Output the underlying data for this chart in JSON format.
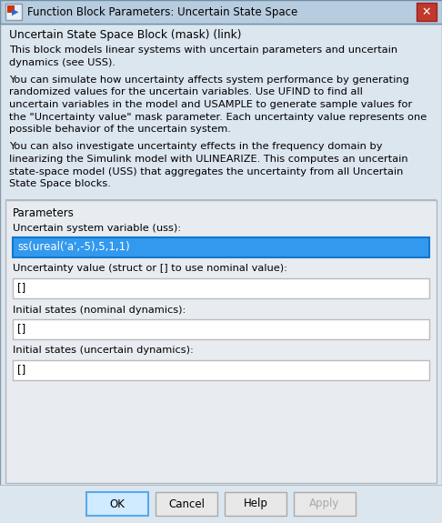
{
  "title": "Function Block Parameters: Uncertain State Space",
  "bg_gradient_top": "#c8d8e8",
  "bg_gradient_bot": "#a0b8d0",
  "dialog_bg": "#dce6ef",
  "desc_bg": "#dce6ef",
  "params_bg": "#e8ecf0",
  "params_border": "#b0b8c0",
  "header_text": "Uncertain State Space Block (mask) (link)",
  "desc_paragraphs": [
    "This block models linear systems with uncertain parameters and uncertain\ndynamics (see USS).",
    "You can simulate how uncertainty affects system performance by generating\nrandomized values for the uncertain variables. Use UFIND to find all\nuncertain variables in the model and USAMPLE to generate sample values for\nthe \"Uncertainty value\" mask parameter. Each uncertainty value represents one\npossible behavior of the uncertain system.",
    "You can also investigate uncertainty effects in the frequency domain by\nlinearizing the Simulink model with ULINEARIZE. This computes an uncertain\nstate-space model (USS) that aggregates the uncertainty from all Uncertain\nState Space blocks."
  ],
  "section_label": "Parameters",
  "fields": [
    {
      "label": "Uncertain system variable (uss):",
      "value": "ss(ureal('a',-5),5,1,1)",
      "selected": true
    },
    {
      "label": "Uncertainty value (struct or [] to use nominal value):",
      "value": "[]",
      "selected": false
    },
    {
      "label": "Initial states (nominal dynamics):",
      "value": "[]",
      "selected": false
    },
    {
      "label": "Initial states (uncertain dynamics):",
      "value": "[]",
      "selected": false
    }
  ],
  "buttons": [
    "OK",
    "Cancel",
    "Help",
    "Apply"
  ],
  "ok_border": "#55aaee",
  "ok_bg": "#d0eaff",
  "btn_bg": "#e8e8e8",
  "btn_border": "#aaaaaa",
  "apply_color": "#aaaaaa",
  "close_bg": "#c0392b",
  "icon_color": "#c8520a",
  "field_bg_selected": "#3399ee",
  "field_text_selected": "#ffffff",
  "field_bg_normal": "#ffffff",
  "field_border_selected": "#1177cc",
  "field_border_normal": "#bbbbbb",
  "separator_color": "#b0b8c0",
  "titlebar_bg_left": "#b8cce0",
  "titlebar_bg_right": "#98b0c8"
}
